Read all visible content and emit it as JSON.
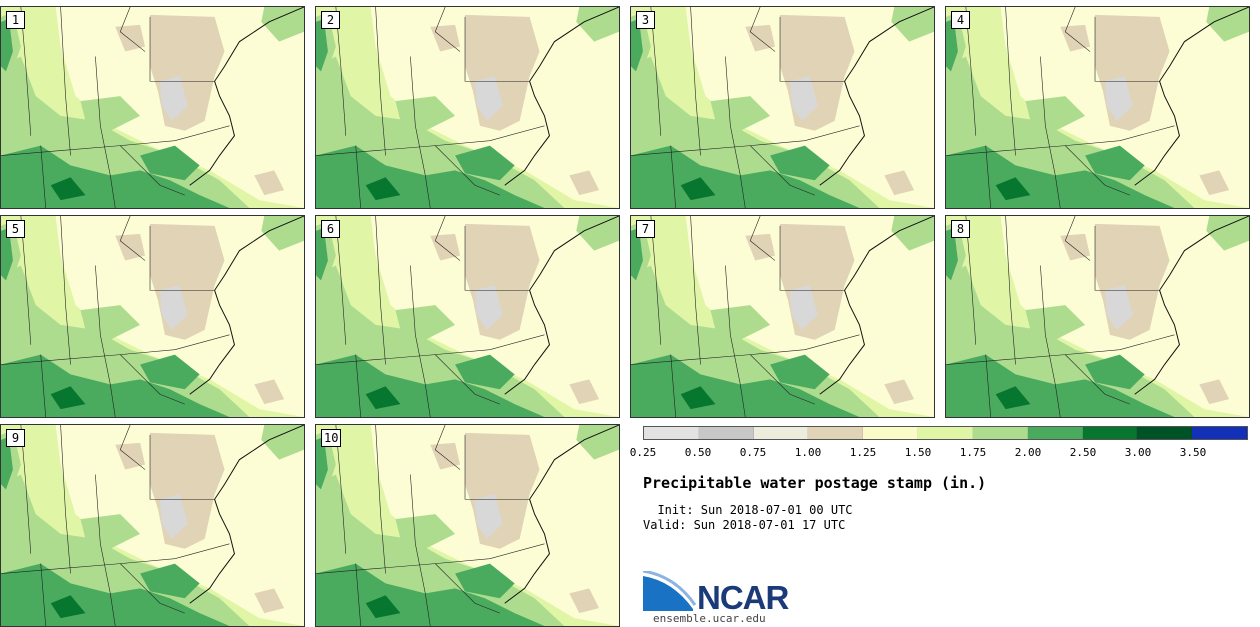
{
  "panels": [
    {
      "label": "1"
    },
    {
      "label": "2"
    },
    {
      "label": "3"
    },
    {
      "label": "4"
    },
    {
      "label": "5"
    },
    {
      "label": "6"
    },
    {
      "label": "7"
    },
    {
      "label": "8"
    },
    {
      "label": "9"
    },
    {
      "label": "10"
    }
  ],
  "legend": {
    "colors": [
      "#e2e2e2",
      "#c7c7c7",
      "#ededde",
      "#e1d3b6",
      "#fbfbc8",
      "#e0f6a6",
      "#aedc8f",
      "#4aab5f",
      "#07762f",
      "#005327",
      "#1230b8"
    ],
    "ticks": [
      "0.25",
      "0.50",
      "0.75",
      "1.00",
      "1.25",
      "1.50",
      "1.75",
      "2.00",
      "2.50",
      "3.00",
      "3.50"
    ]
  },
  "title": "Precipitable water postage stamp (in.)",
  "init": "  Init: Sun 2018-07-01 00 UTC",
  "valid": "Valid: Sun 2018-07-01 17 UTC",
  "logo": {
    "text": "NCAR",
    "url": "ensemble.ucar.edu"
  }
}
